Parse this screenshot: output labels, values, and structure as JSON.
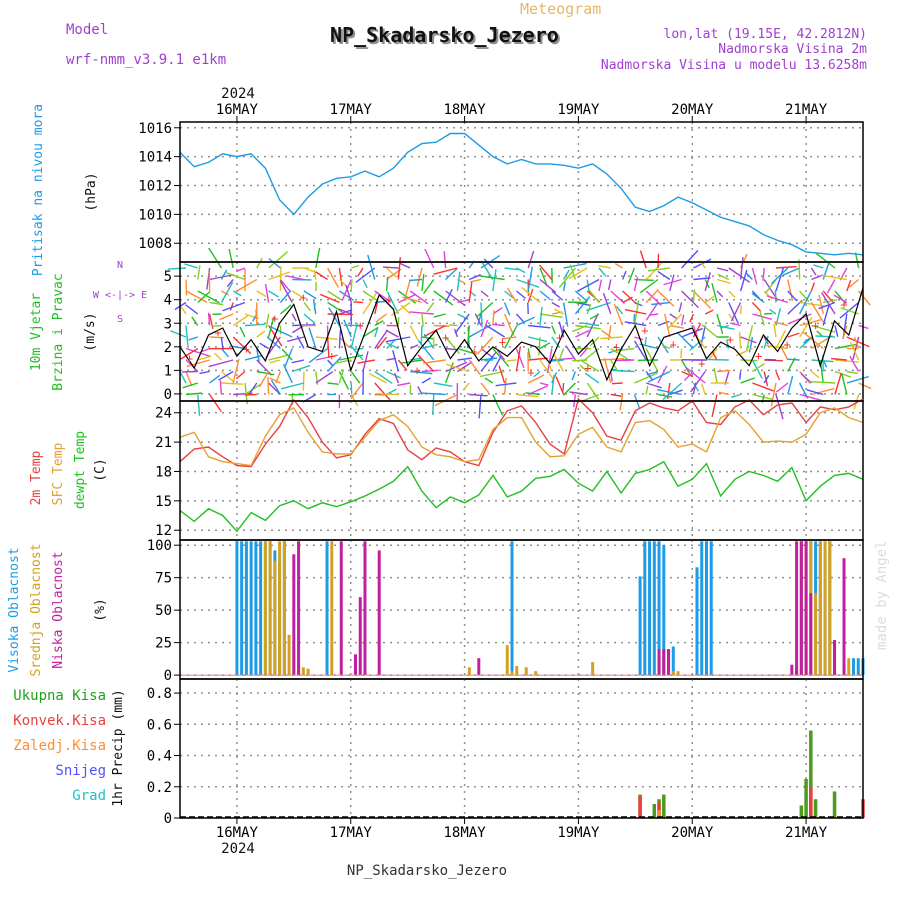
{
  "header": {
    "model_label": "Model",
    "model_name": "wrf-nmm_v3.9.1 e1km",
    "meteogram_label": "Meteogram",
    "station": "NP_Skadarsko_Jezero",
    "lonlat": "lon,lat (19.15E, 42.2812N)",
    "altitude": "Nadmorska Visina 2m",
    "model_altitude": "Nadmorska Visina u modelu 13.6258m",
    "footer_station": "NP_Skadarsko_Jezero",
    "watermark": "made by Angel"
  },
  "colors": {
    "pressure": "#1e9be6",
    "wind_label": "#20c020",
    "wind_speed_line": "#000000",
    "gust_marks": "#ff3030",
    "temp2m": "#e64040",
    "sfc_temp": "#e6a030",
    "dewpoint": "#20c020",
    "cloud_high": "#1e9be6",
    "cloud_mid": "#d4a020",
    "cloud_low": "#c020a0",
    "total_precip": "#4c9a1e",
    "conv_precip": "#e64040",
    "frozen_precip": "#ff8c30",
    "snow": "#5050ff",
    "hail": "#20c0c0",
    "purple_text": "#a040d0",
    "gold_text": "#e6b860",
    "compass": "#a040d0"
  },
  "chart_data": {
    "type": "line",
    "time": {
      "unit": "hours since 2024-05-15 12:00 UTC",
      "range": [
        0,
        144
      ],
      "day_ticks": [
        {
          "label": "16MAY",
          "hour": 12
        },
        {
          "label": "17MAY",
          "hour": 36
        },
        {
          "label": "18MAY",
          "hour": 60
        },
        {
          "label": "19MAY",
          "hour": 84
        },
        {
          "label": "20MAY",
          "hour": 108
        },
        {
          "label": "21MAY",
          "hour": 132
        }
      ],
      "year_label": "2024"
    },
    "panels": [
      {
        "id": "pressure",
        "type": "line",
        "label_lines": [
          "Pritisak na nivou mora"
        ],
        "unit": "(hPa)",
        "yticks": [
          1008,
          1010,
          1012,
          1014,
          1016
        ],
        "ylim": [
          1006.7,
          1016.4
        ],
        "grid": true,
        "series": [
          {
            "color_key": "pressure",
            "x": [
              0,
              3,
              6,
              9,
              12,
              15,
              18,
              21,
              24,
              27,
              30,
              33,
              36,
              39,
              42,
              45,
              48,
              51,
              54,
              57,
              60,
              63,
              66,
              69,
              72,
              75,
              78,
              81,
              84,
              87,
              90,
              93,
              96,
              99,
              102,
              105,
              108,
              111,
              114,
              117,
              120,
              123,
              126,
              129,
              132,
              135,
              138,
              141,
              144
            ],
            "y": [
              1014.3,
              1013.3,
              1013.6,
              1014.2,
              1014.0,
              1014.2,
              1013.2,
              1011.0,
              1010.0,
              1011.2,
              1012.1,
              1012.5,
              1012.6,
              1013.0,
              1012.6,
              1013.2,
              1014.3,
              1014.9,
              1015.0,
              1015.6,
              1015.6,
              1014.8,
              1014.0,
              1013.5,
              1013.8,
              1013.5,
              1013.5,
              1013.4,
              1013.2,
              1013.5,
              1012.8,
              1011.8,
              1010.5,
              1010.2,
              1010.6,
              1011.2,
              1010.8,
              1010.3,
              1009.8,
              1009.5,
              1009.2,
              1008.6,
              1008.2,
              1007.9,
              1007.4,
              1007.3,
              1007.2,
              1007.3,
              1007.2
            ]
          }
        ]
      },
      {
        "id": "wind",
        "type": "line",
        "label_lines": [
          "10m Vjetar",
          "Brzina i Pravac"
        ],
        "unit": "(m/s)",
        "compass_text": "W <-|-> E",
        "compass_vertical_top": "N",
        "compass_vertical_bottom": "S",
        "yticks": [
          0,
          1,
          2,
          3,
          4,
          5
        ],
        "ylim": [
          -0.3,
          5.6
        ],
        "grid": true,
        "series": [
          {
            "name": "",
            "color_key": "wind_speed_line",
            "x": [
              0,
              3,
              6,
              9,
              12,
              15,
              18,
              21,
              24,
              27,
              30,
              33,
              36,
              39,
              42,
              45,
              48,
              51,
              54,
              57,
              60,
              63,
              66,
              69,
              72,
              75,
              78,
              81,
              84,
              87,
              90,
              93,
              96,
              99,
              102,
              105,
              108,
              111,
              114,
              117,
              120,
              123,
              126,
              129,
              132,
              135,
              138,
              141,
              144
            ],
            "y": [
              2.0,
              1.1,
              2.5,
              2.8,
              1.6,
              2.3,
              1.4,
              3.0,
              3.8,
              2.0,
              1.8,
              3.5,
              1.0,
              2.6,
              4.2,
              3.6,
              1.2,
              2.0,
              2.7,
              1.5,
              2.3,
              1.4,
              2.0,
              1.6,
              2.2,
              2.0,
              1.3,
              2.7,
              1.7,
              2.3,
              0.6,
              1.9,
              2.9,
              1.2,
              2.4,
              2.6,
              2.8,
              1.5,
              2.2,
              1.9,
              1.2,
              2.5,
              1.8,
              2.8,
              3.4,
              1.2,
              3.1,
              2.5,
              4.5
            ]
          },
          {
            "name": "",
            "color_key": "gust_marks",
            "x": [
              2,
              8,
              14,
              20,
              26,
              32,
              38,
              44,
              50,
              56,
              62,
              68,
              74,
              80,
              86,
              92,
              98,
              104,
              110,
              116,
              122,
              128,
              134,
              140
            ],
            "y": [
              1.5,
              2.6,
              1.9,
              3.2,
              4.1,
              1.6,
              2.9,
              4.0,
              1.0,
              2.4,
              1.8,
              2.2,
              0.9,
              2.4,
              1.1,
              2.0,
              2.7,
              2.1,
              1.3,
              2.3,
              1.6,
              2.1,
              2.9,
              3.8
            ]
          }
        ]
      },
      {
        "id": "temperature",
        "type": "line",
        "label_lines": [
          "2m Temp",
          "SFC Temp",
          "dewpt Temp"
        ],
        "unit": "(C)",
        "yticks": [
          12,
          15,
          18,
          21,
          24
        ],
        "ylim": [
          11,
          25.2
        ],
        "grid": true,
        "series": [
          {
            "name": "2m Temp",
            "color_key": "temp2m",
            "x": [
              0,
              3,
              6,
              9,
              12,
              15,
              18,
              21,
              24,
              27,
              30,
              33,
              36,
              39,
              42,
              45,
              48,
              51,
              54,
              57,
              60,
              63,
              66,
              69,
              72,
              75,
              78,
              81,
              84,
              87,
              90,
              93,
              96,
              99,
              102,
              105,
              108,
              111,
              114,
              117,
              120,
              123,
              126,
              129,
              132,
              135,
              138,
              141,
              144
            ],
            "y": [
              19.0,
              20.3,
              20.5,
              19.5,
              18.6,
              18.5,
              20.8,
              22.6,
              25.3,
              23.5,
              21.0,
              19.4,
              19.7,
              21.8,
              23.4,
              22.9,
              20.2,
              19.2,
              20.4,
              20.0,
              19.0,
              18.6,
              22.0,
              24.2,
              24.7,
              23.0,
              20.8,
              19.8,
              25.4,
              24.0,
              21.6,
              21.2,
              24.2,
              25.0,
              24.5,
              24.2,
              25.2,
              23.0,
              22.8,
              24.6,
              25.3,
              23.8,
              24.8,
              25.0,
              23.0,
              24.6,
              24.3,
              24.6,
              25.4
            ]
          },
          {
            "name": "SFC Temp",
            "color_key": "sfc_temp",
            "x": [
              0,
              3,
              6,
              9,
              12,
              15,
              18,
              21,
              24,
              27,
              30,
              33,
              36,
              39,
              42,
              45,
              48,
              51,
              54,
              57,
              60,
              63,
              66,
              69,
              72,
              75,
              78,
              81,
              84,
              87,
              90,
              93,
              96,
              99,
              102,
              105,
              108,
              111,
              114,
              117,
              120,
              123,
              126,
              129,
              132,
              135,
              138,
              141,
              144
            ],
            "y": [
              21.5,
              22.0,
              19.5,
              19.0,
              18.8,
              18.6,
              21.6,
              23.8,
              24.5,
              22.0,
              20.0,
              19.8,
              19.8,
              21.5,
              23.2,
              23.8,
              22.6,
              20.5,
              19.7,
              19.5,
              19.0,
              19.2,
              22.3,
              23.5,
              23.5,
              21.0,
              19.5,
              19.6,
              21.8,
              22.5,
              20.5,
              20.0,
              23.0,
              23.2,
              22.3,
              20.5,
              20.8,
              20.0,
              23.5,
              24.2,
              22.8,
              21.0,
              21.1,
              21.0,
              21.8,
              24.0,
              24.5,
              23.5,
              23.0
            ]
          },
          {
            "name": "dewpt Temp",
            "color_key": "dewpoint",
            "x": [
              0,
              3,
              6,
              9,
              12,
              15,
              18,
              21,
              24,
              27,
              30,
              33,
              36,
              39,
              42,
              45,
              48,
              51,
              54,
              57,
              60,
              63,
              66,
              69,
              72,
              75,
              78,
              81,
              84,
              87,
              90,
              93,
              96,
              99,
              102,
              105,
              108,
              111,
              114,
              117,
              120,
              123,
              126,
              129,
              132,
              135,
              138,
              141,
              144
            ],
            "y": [
              14.0,
              12.9,
              14.2,
              13.5,
              11.9,
              13.8,
              13.0,
              14.5,
              15.0,
              14.2,
              14.8,
              14.4,
              14.9,
              15.5,
              16.2,
              17.0,
              18.5,
              16.0,
              14.3,
              15.4,
              14.8,
              15.6,
              17.6,
              15.4,
              16.0,
              17.3,
              17.5,
              18.2,
              16.8,
              16.0,
              18.0,
              15.8,
              17.8,
              18.2,
              19.0,
              16.5,
              17.2,
              18.8,
              15.5,
              17.2,
              18.0,
              17.6,
              17.0,
              18.4,
              15.0,
              16.5,
              17.6,
              17.8,
              17.2
            ]
          }
        ]
      },
      {
        "id": "clouds",
        "type": "bar",
        "label_lines": [
          "Visoka Oblacnost",
          "Srednja Oblacnost",
          "Niska Oblacnost"
        ],
        "unit": "(%)",
        "yticks": [
          0,
          25,
          50,
          75,
          100
        ],
        "ylim": [
          -3,
          104
        ],
        "grid": true,
        "series": [
          {
            "name": "Visoka Oblacnost",
            "color_key": "cloud_high",
            "x": [
              12,
              13,
              14,
              15,
              16,
              17,
              18,
              19,
              20,
              21,
              22,
              31,
              70,
              97,
              98,
              99,
              100,
              101,
              102,
              103,
              104,
              109,
              110,
              111,
              112,
              131,
              132,
              133,
              134,
              135,
              136,
              137,
              142,
              143,
              144
            ],
            "y": [
              100,
              100,
              100,
              100,
              100,
              100,
              100,
              100,
              93,
              86,
              100,
              100,
              100,
              73,
              100,
              100,
              100,
              100,
              97,
              17,
              19,
              80,
              100,
              100,
              100,
              100,
              100,
              100,
              100,
              100,
              90,
              100,
              10,
              10,
              10
            ]
          },
          {
            "name": "Srednja Oblacnost",
            "color_key": "cloud_mid",
            "x": [
              18,
              19,
              20,
              21,
              22,
              23,
              24,
              25,
              26,
              27,
              32,
              61,
              69,
              70,
              71,
              73,
              75,
              87,
              102,
              103,
              104,
              105,
              130,
              131,
              132,
              133,
              134,
              135,
              136,
              137,
              138,
              141
            ],
            "y": [
              100,
              100,
              85,
              100,
              100,
              28,
              20,
              5,
              3,
              2,
              100,
              3,
              20,
              0,
              4,
              3,
              0,
              7,
              17,
              15,
              0,
              0,
              5,
              100,
              100,
              100,
              60,
              100,
              100,
              100,
              22,
              10
            ]
          },
          {
            "name": "Niska Oblacnost",
            "color_key": "cloud_low",
            "x": [
              24,
              25,
              34,
              37,
              38,
              39,
              42,
              63,
              101,
              102,
              103,
              129,
              130,
              131,
              132,
              133,
              138,
              140
            ],
            "y": [
              90,
              100,
              100,
              13,
              57,
              100,
              93,
              10,
              17,
              17,
              17,
              5,
              100,
              100,
              100,
              60,
              24,
              87
            ]
          }
        ]
      },
      {
        "id": "precip",
        "type": "bar",
        "label_lines": [
          "1hr Precip (mm)"
        ],
        "unit": "",
        "legend_entries": [
          "Ukupna Kisa",
          "Konvek.Kisa",
          "Zaledj.Kisa",
          "Snijeg",
          "Grad"
        ],
        "yticks": [
          0,
          0.2,
          0.4,
          0.6,
          0.8
        ],
        "ylim": [
          0,
          0.89
        ],
        "grid": true,
        "series": [
          {
            "name": "Ukupna Kisa",
            "color_key": "total_precip",
            "x": [
              97,
              100,
              101,
              102,
              131,
              132,
              133,
              134,
              135,
              138,
              144
            ],
            "y": [
              0.15,
              0.09,
              0.12,
              0.15,
              0.08,
              0.25,
              0.56,
              0.12,
              0.0,
              0.17,
              0.0
            ]
          },
          {
            "name": "Konvek.Kisa",
            "color_key": "conv_precip",
            "x": [
              97,
              101,
              133,
              144
            ],
            "y": [
              0.14,
              0.1,
              0.2,
              0.12
            ]
          },
          {
            "name": "Zaledj.Kisa",
            "color_key": "frozen_precip",
            "x": [
              101
            ],
            "y": [
              0.05
            ]
          }
        ]
      }
    ]
  }
}
